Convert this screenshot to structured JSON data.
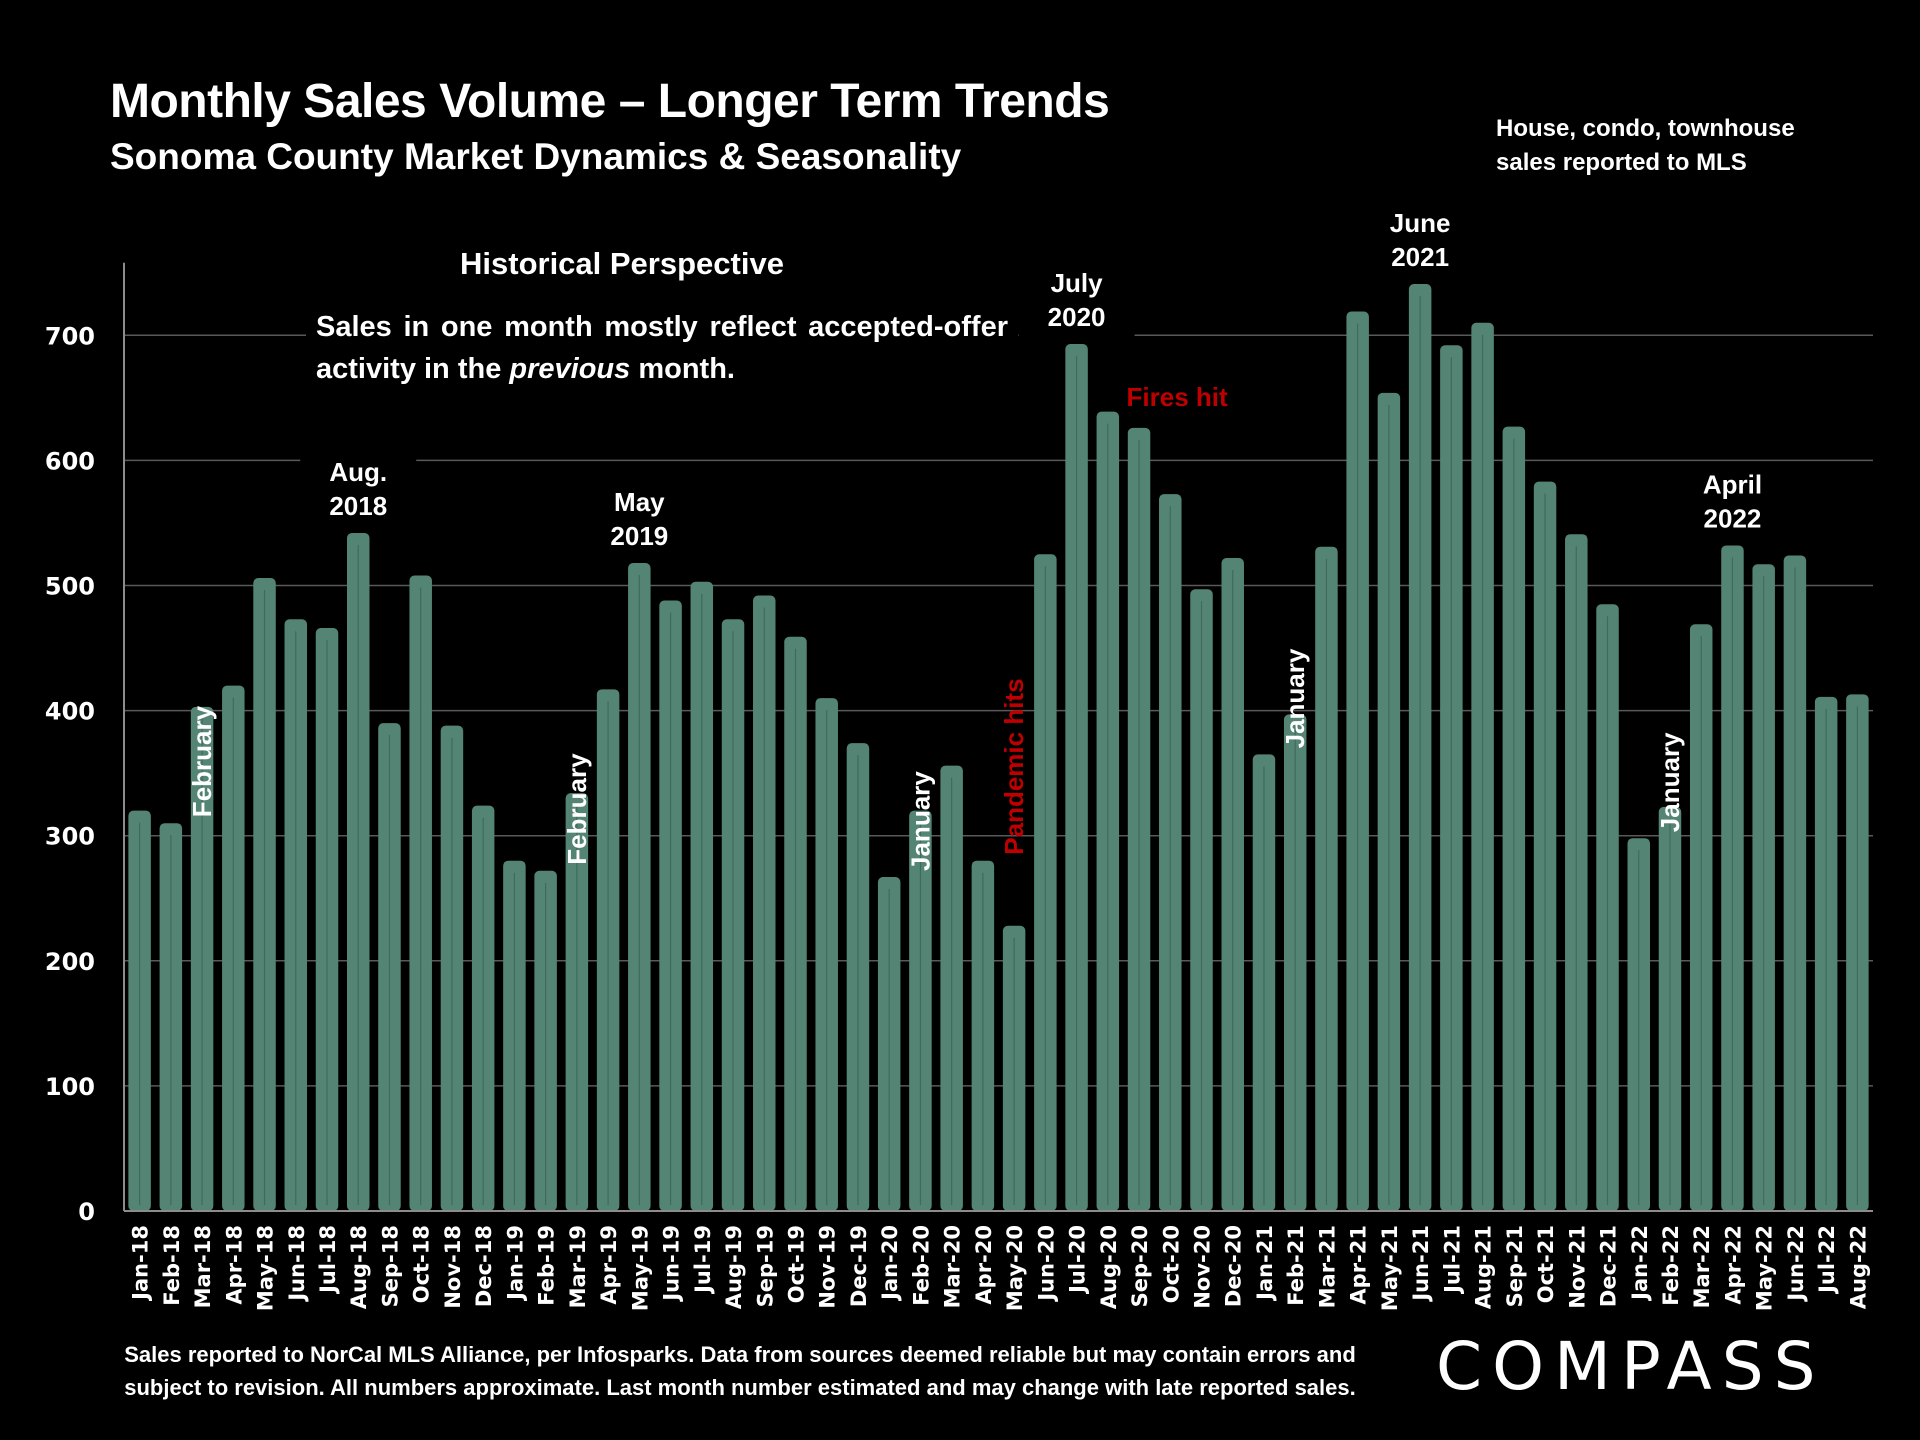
{
  "header": {
    "title": "Monthly Sales Volume – Longer Term Trends",
    "subtitle": "Sonoma County Market Dynamics & Seasonality",
    "note_line1": "House, condo, townhouse",
    "note_line2": "sales reported to MLS"
  },
  "historical": {
    "title": "Historical Perspective",
    "body_before": "Sales in one month mostly reflect accepted-offer activity in the ",
    "body_em": "previous",
    "body_after": " month."
  },
  "footer": {
    "line1": "Sales reported to NorCal MLS Alliance, per Infosparks. Data from sources deemed reliable but may contain errors and",
    "line2": "subject to revision. All numbers approximate. Last month number estimated and may change with late reported sales."
  },
  "logo": {
    "text": "COMPASS"
  },
  "colors": {
    "bar": "#548574",
    "bar_line": "#3f6b5c",
    "grid": "#595959",
    "annotation_red": "#c00000",
    "background": "#000000"
  },
  "chart_data": {
    "type": "bar",
    "title": "Monthly Sales Volume – Longer Term Trends",
    "subtitle": "Sonoma County Market Dynamics & Seasonality",
    "xlabel": "",
    "ylabel": "",
    "ylim": [
      0,
      750
    ],
    "yticks": [
      0,
      100,
      200,
      300,
      400,
      500,
      600,
      700
    ],
    "grid": true,
    "legend": "none",
    "categories": [
      "Jan-18",
      "Feb-18",
      "Mar-18",
      "Apr-18",
      "May-18",
      "Jun-18",
      "Jul-18",
      "Aug-18",
      "Sep-18",
      "Oct-18",
      "Nov-18",
      "Dec-18",
      "Jan-19",
      "Feb-19",
      "Mar-19",
      "Apr-19",
      "May-19",
      "Jun-19",
      "Jul-19",
      "Aug-19",
      "Sep-19",
      "Oct-19",
      "Nov-19",
      "Dec-19",
      "Jan-20",
      "Feb-20",
      "Mar-20",
      "Apr-20",
      "May-20",
      "Jun-20",
      "Jul-20",
      "Aug-20",
      "Sep-20",
      "Oct-20",
      "Nov-20",
      "Dec-20",
      "Jan-21",
      "Feb-21",
      "Mar-21",
      "Apr-21",
      "May-21",
      "Jun-21",
      "Jul-21",
      "Aug-21",
      "Sep-21",
      "Oct-21",
      "Nov-21",
      "Dec-21",
      "Jan-22",
      "Feb-22",
      "Mar-22",
      "Apr-22",
      "May-22",
      "Jun-22",
      "Jul-22",
      "Aug-22"
    ],
    "values": [
      320,
      310,
      403,
      420,
      506,
      473,
      466,
      542,
      390,
      508,
      388,
      324,
      280,
      272,
      334,
      417,
      518,
      488,
      503,
      473,
      492,
      459,
      410,
      374,
      267,
      320,
      356,
      280,
      228,
      525,
      693,
      639,
      626,
      573,
      497,
      522,
      365,
      397,
      531,
      719,
      654,
      741,
      692,
      710,
      627,
      583,
      541,
      485,
      298,
      323,
      469,
      532,
      517,
      524,
      411,
      413
    ],
    "annotations": [
      {
        "text": "February",
        "index": 1,
        "rotated": true,
        "color": "white"
      },
      {
        "text": "Aug.",
        "text2": "2018",
        "index": 7,
        "rotated": false,
        "color": "white"
      },
      {
        "text": "February",
        "index": 13,
        "rotated": true,
        "color": "white"
      },
      {
        "text": "May",
        "text2": "2019",
        "index": 16,
        "rotated": false,
        "color": "white"
      },
      {
        "text": "January",
        "index": 24,
        "rotated": true,
        "color": "white"
      },
      {
        "text": "Pandemic hits",
        "index": 27,
        "rotated": true,
        "color": "red"
      },
      {
        "text": "July",
        "text2": "2020",
        "index": 30,
        "rotated": false,
        "color": "white"
      },
      {
        "text": "Fires hit",
        "index": 32,
        "rotated": false,
        "color": "red"
      },
      {
        "text": "January",
        "index": 36,
        "rotated": true,
        "color": "white"
      },
      {
        "text": "June",
        "text2": "2021",
        "index": 41,
        "rotated": false,
        "color": "white"
      },
      {
        "text": "January",
        "index": 48,
        "rotated": true,
        "color": "white"
      },
      {
        "text": "April",
        "text2": "2022",
        "index": 51,
        "rotated": false,
        "color": "white"
      }
    ]
  }
}
